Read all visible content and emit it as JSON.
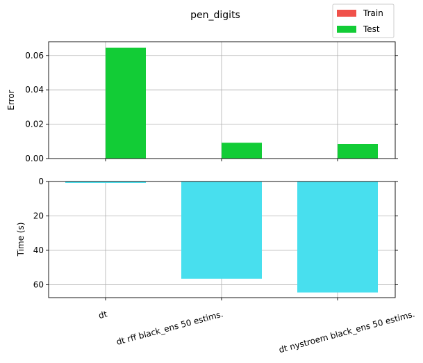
{
  "chart_data": {
    "type": "bar",
    "title": "pen_digits",
    "categories": [
      "dt",
      "dt rff black_ens 50 estims.",
      "dt nystroem black_ens 50 estims."
    ],
    "legend": {
      "placement": "top-right",
      "entries": [
        {
          "name": "Train",
          "color": "#f0514a"
        },
        {
          "name": "Test",
          "color": "#12cc36"
        }
      ]
    },
    "grid": true,
    "panels": [
      {
        "id": "error",
        "ylabel": "Error",
        "ylim": [
          0,
          0.068
        ],
        "yticks": [
          0.0,
          0.02,
          0.04,
          0.06
        ],
        "ytick_labels": [
          "0.00",
          "0.02",
          "0.04",
          "0.06"
        ],
        "series": [
          {
            "name": "Train",
            "color": "#f0514a",
            "values": [
              0.0,
              0.0,
              0.0
            ]
          },
          {
            "name": "Test",
            "color": "#12cc36",
            "values": [
              0.0645,
              0.0092,
              0.0085
            ]
          }
        ]
      },
      {
        "id": "time",
        "ylabel": "Time (s)",
        "ylim": [
          0,
          67.5
        ],
        "inverted": true,
        "yticks": [
          0,
          20,
          40,
          60
        ],
        "ytick_labels": [
          "0",
          "20",
          "40",
          "60"
        ],
        "series": [
          {
            "name": "Time",
            "color": "#48dfee",
            "values": [
              0.8,
              56.5,
              64.5
            ]
          }
        ]
      }
    ]
  }
}
